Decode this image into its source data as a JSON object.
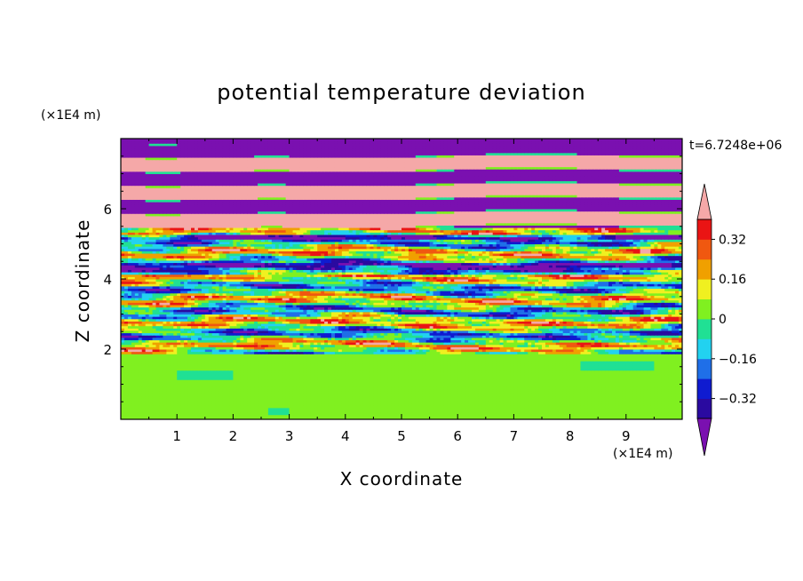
{
  "chart_data": {
    "type": "heatmap",
    "title": "potential temperature deviation",
    "xlabel": "X coordinate",
    "ylabel": "Z coordinate",
    "x_unit": "(×1E4 m)",
    "y_unit": "(×1E4 m)",
    "time_label": "t=6.7248e+06",
    "xlim": [
      0,
      10
    ],
    "ylim": [
      0,
      8
    ],
    "x_ticks": [
      "1",
      "2",
      "3",
      "4",
      "5",
      "6",
      "7",
      "8",
      "9"
    ],
    "y_ticks": [
      "2",
      "4",
      "6"
    ],
    "colorbar": {
      "levels": [
        -0.48,
        -0.4,
        -0.32,
        -0.24,
        -0.16,
        -0.08,
        0,
        0.08,
        0.16,
        0.24,
        0.32,
        0.4,
        0.48
      ],
      "colors": [
        "#7a10b0",
        "#2a0aa0",
        "#0f1bd0",
        "#1f6fe8",
        "#22d2f0",
        "#20e094",
        "#80f020",
        "#f0f020",
        "#f0a000",
        "#f05810",
        "#ea1414",
        "#f5a8a8"
      ],
      "tick_labels": [
        "0.32",
        "0.16",
        "0",
        "−0.16",
        "−0.32"
      ],
      "tick_values": [
        0.32,
        0.16,
        0,
        -0.16,
        -0.32
      ],
      "extend": "both"
    },
    "layers": [
      {
        "z_range": [
          0,
          1.9
        ],
        "dominant_value": 0.04,
        "description": "smooth near-zero"
      },
      {
        "z_range": [
          1.9,
          5.5
        ],
        "dominant_value": 0.0,
        "description": "turbulent mixed"
      },
      {
        "z_range": [
          5.5,
          8.0
        ],
        "dominant_value": 0.45,
        "description": "stratified alternating bands"
      }
    ]
  }
}
